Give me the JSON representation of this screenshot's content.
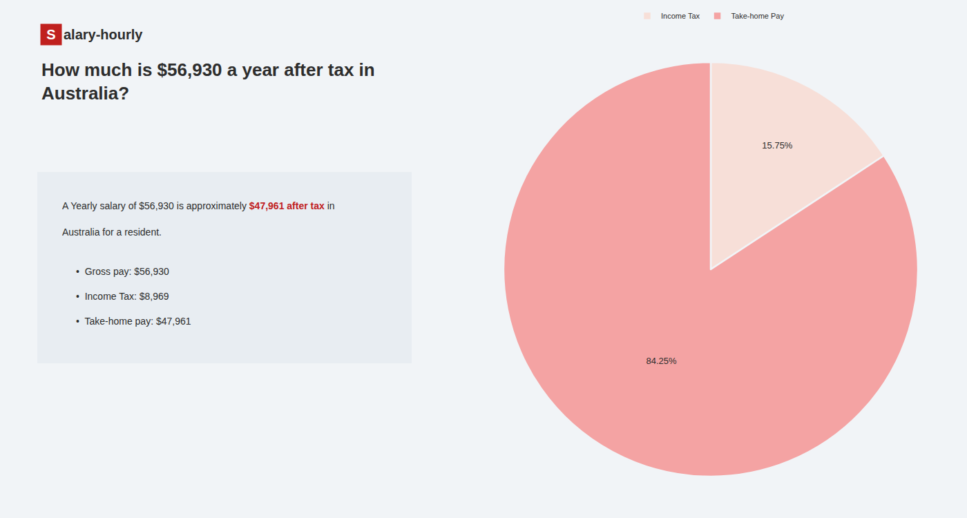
{
  "chart_data": {
    "type": "pie",
    "title": "How much is $56,930 a year after tax in\nAustralia?",
    "categories": [
      "Income Tax",
      "Take-home Pay"
    ],
    "values": [
      15.75,
      84.25
    ],
    "value_labels": [
      "15.75%",
      "84.25%"
    ],
    "data_labels": true,
    "colors": [
      "#f7dfd8",
      "#f4a3a3"
    ],
    "legend": "top",
    "annotations": [
      [
        "S",
        "alary-hourly"
      ],
      [
        "A Yearly salary of $56,930 is approximately ",
        "$47,961 after tax",
        " in"
      ],
      [
        "Australia for a resident."
      ],
      [
        "•  Gross pay: $56,930"
      ],
      [
        "•  Income Tax: $8,969"
      ],
      [
        "•  Take-home pay: $47,961"
      ]
    ]
  }
}
